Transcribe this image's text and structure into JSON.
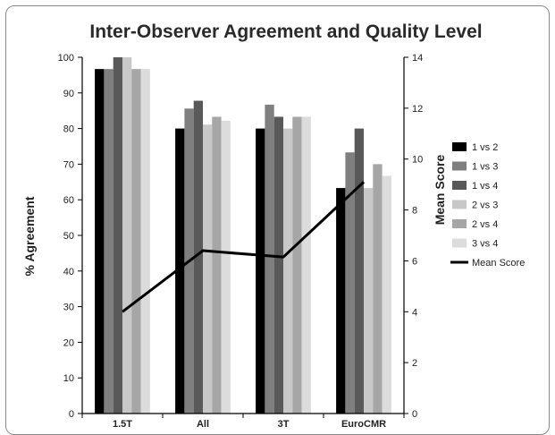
{
  "chart_data": {
    "type": "bar",
    "title": "Inter-Observer Agreement and Quality Level",
    "xlabel": "",
    "ylabel": "% Agreement",
    "y2label": "Mean Score",
    "ylim": [
      0,
      100
    ],
    "y2lim": [
      0,
      14
    ],
    "yticks": [
      "0",
      "10",
      "20",
      "30",
      "40",
      "50",
      "60",
      "70",
      "80",
      "90",
      "100"
    ],
    "y2ticks": [
      "0",
      "2",
      "4",
      "6",
      "8",
      "10",
      "12",
      "14"
    ],
    "categories": [
      "1.5T",
      "All",
      "3T",
      "EuroCMR"
    ],
    "series": [
      {
        "name": "1 vs 2",
        "color": "#000000",
        "values": [
          96.7,
          80.0,
          80.0,
          63.3
        ]
      },
      {
        "name": "1 vs 3",
        "color": "#7f7f7f",
        "values": [
          96.7,
          85.6,
          86.7,
          73.3
        ]
      },
      {
        "name": "1 vs 4",
        "color": "#595959",
        "values": [
          100.0,
          87.8,
          83.3,
          80.0
        ]
      },
      {
        "name": "2 vs 3",
        "color": "#c8c8c8",
        "values": [
          100.0,
          81.1,
          80.0,
          63.3
        ]
      },
      {
        "name": "2 vs 4",
        "color": "#a6a6a6",
        "values": [
          96.7,
          83.3,
          83.3,
          70.0
        ]
      },
      {
        "name": "3 vs 4",
        "color": "#dcdcdc",
        "values": [
          96.7,
          82.2,
          83.3,
          66.7
        ]
      }
    ],
    "line_series": {
      "name": "Mean Score",
      "color": "#000000",
      "axis": "right",
      "values": [
        4.0,
        6.4,
        6.15,
        9.1
      ]
    },
    "grid": false,
    "legend_position": "right"
  }
}
